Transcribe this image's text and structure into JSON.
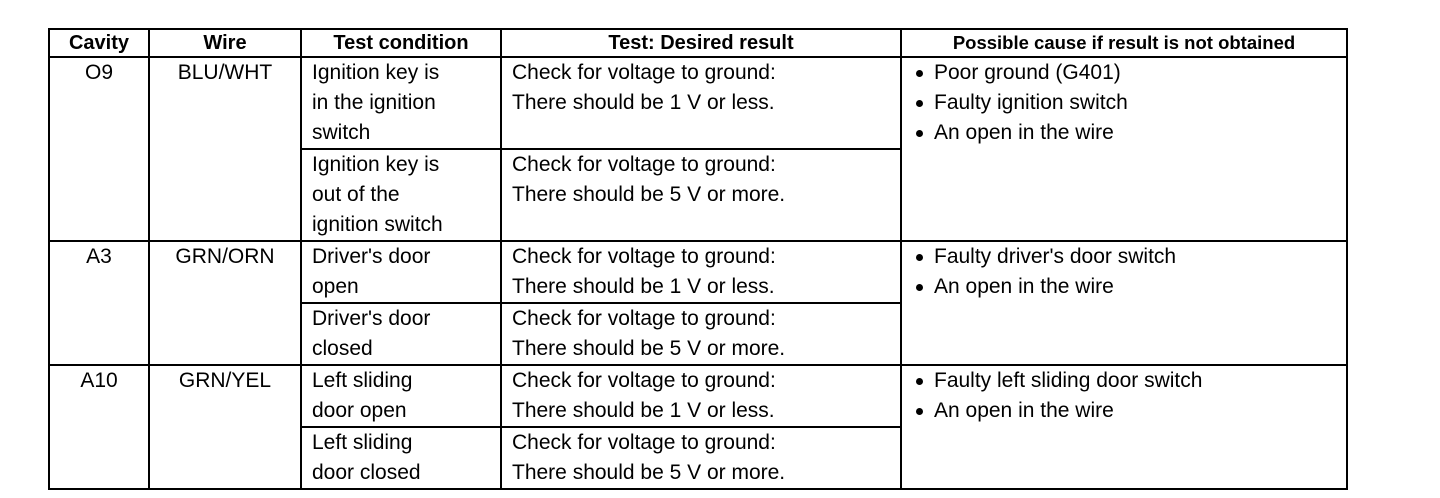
{
  "headers": [
    "Cavity",
    "Wire",
    "Test condition",
    "Test: Desired result",
    "Possible cause if result is not obtained"
  ],
  "rows": [
    {
      "cavity": "O9",
      "wire": "BLU/WHT",
      "tests": [
        {
          "condition": [
            "Ignition key is",
            "in the ignition",
            "switch"
          ],
          "result": [
            "Check for voltage to ground:",
            "There should be 1 V or less."
          ]
        },
        {
          "condition": [
            "Ignition key is",
            "out of the",
            "ignition switch"
          ],
          "result": [
            "Check for voltage to ground:",
            "There should be 5 V or more."
          ]
        }
      ],
      "causes": [
        "Poor ground (G401)",
        "Faulty ignition switch",
        "An open in the wire"
      ]
    },
    {
      "cavity": "A3",
      "wire": "GRN/ORN",
      "tests": [
        {
          "condition": [
            "Driver's door",
            "open"
          ],
          "result": [
            "Check for voltage to ground:",
            "There should be 1 V or less."
          ]
        },
        {
          "condition": [
            "Driver's door",
            "closed"
          ],
          "result": [
            "Check for voltage to ground:",
            "There should be 5 V or more."
          ]
        }
      ],
      "causes": [
        "Faulty driver's door switch",
        "An open in the wire"
      ]
    },
    {
      "cavity": "A10",
      "wire": "GRN/YEL",
      "tests": [
        {
          "condition": [
            "Left sliding",
            "door open"
          ],
          "result": [
            "Check for voltage to ground:",
            "There should be 1 V or less."
          ]
        },
        {
          "condition": [
            "Left sliding",
            "door closed"
          ],
          "result": [
            "Check for voltage to ground:",
            "There should be 5 V or more."
          ]
        }
      ],
      "causes": [
        "Faulty left sliding door switch",
        "An open in the wire"
      ]
    }
  ]
}
